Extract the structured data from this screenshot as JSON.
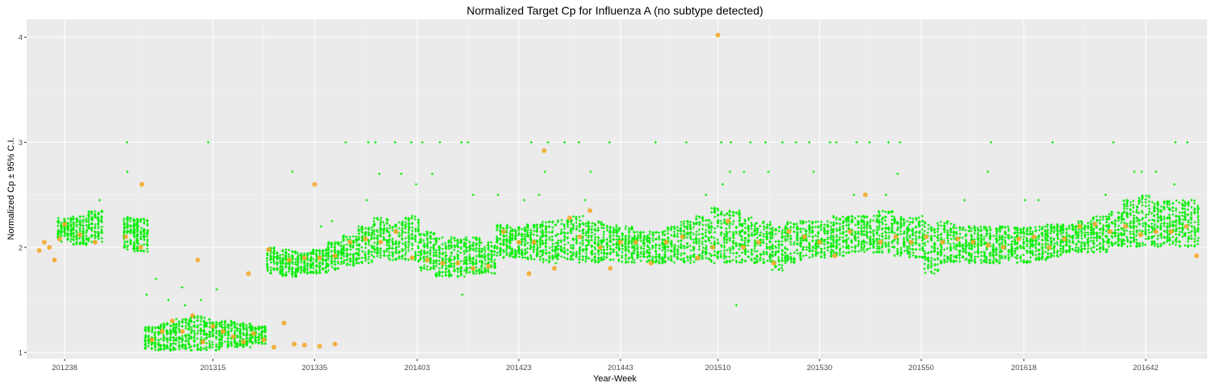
{
  "chart_data": {
    "type": "scatter",
    "title": "Normalized Target Cp for Influenza A (no subtype detected)",
    "xlabel": "Year-Week",
    "ylabel": "Normalized Cp ± 95% C.I.",
    "x_tick_labels": [
      "201238",
      "201315",
      "201335",
      "201403",
      "201423",
      "201443",
      "201510",
      "201530",
      "201550",
      "201618",
      "201642"
    ],
    "y_tick_labels": [
      "1",
      "2",
      "3",
      "4"
    ],
    "ylim": [
      0.94,
      4.17
    ],
    "grid": true,
    "colors": {
      "panel": "#ebebeb",
      "grid_major": "#ffffff",
      "grid_minor": "#f5f5f5",
      "ci_points": "#00ee00",
      "mean_points": "#f5a623"
    },
    "series": [
      {
        "marker": "small-cross",
        "values_by_week": [
          {
            "x": "201238",
            "low": 2.05,
            "high": 2.28,
            "outliers": []
          },
          {
            "x": "201241",
            "low": 2.02,
            "high": 2.3,
            "outliers": []
          },
          {
            "x": "201244",
            "low": 2.05,
            "high": 2.35,
            "outliers": [
              2.45
            ]
          },
          {
            "x": "201251",
            "low": 1.98,
            "high": 2.3,
            "outliers": [
              2.72,
              3.0
            ]
          },
          {
            "x": "201253",
            "low": 1.95,
            "high": 2.28,
            "outliers": []
          },
          {
            "x": "201303",
            "low": 1.02,
            "high": 1.25,
            "outliers": [
              1.55,
              1.7
            ]
          },
          {
            "x": "201306",
            "low": 1.02,
            "high": 1.28,
            "outliers": [
              1.5
            ]
          },
          {
            "x": "201309",
            "low": 1.03,
            "high": 1.32,
            "outliers": [
              1.45,
              1.62
            ]
          },
          {
            "x": "201312",
            "low": 1.02,
            "high": 1.35,
            "outliers": [
              1.5
            ]
          },
          {
            "x": "201315",
            "low": 1.02,
            "high": 1.32,
            "outliers": [
              1.6,
              3.0
            ]
          },
          {
            "x": "201318",
            "low": 1.05,
            "high": 1.3,
            "outliers": []
          },
          {
            "x": "201321",
            "low": 1.05,
            "high": 1.28,
            "outliers": []
          },
          {
            "x": "201324",
            "low": 1.08,
            "high": 1.25,
            "outliers": []
          },
          {
            "x": "201327",
            "low": 1.75,
            "high": 2.0,
            "outliers": []
          },
          {
            "x": "201330",
            "low": 1.72,
            "high": 1.98,
            "outliers": [
              2.72
            ]
          },
          {
            "x": "201333",
            "low": 1.75,
            "high": 1.95,
            "outliers": []
          },
          {
            "x": "201336",
            "low": 1.75,
            "high": 1.98,
            "outliers": [
              2.2
            ]
          },
          {
            "x": "201339",
            "low": 1.78,
            "high": 2.05,
            "outliers": [
              2.25
            ]
          },
          {
            "x": "201342",
            "low": 1.82,
            "high": 2.12,
            "outliers": [
              3.0
            ]
          },
          {
            "x": "201345",
            "low": 1.85,
            "high": 2.2,
            "outliers": [
              2.45,
              3.0
            ]
          },
          {
            "x": "201348",
            "low": 1.9,
            "high": 2.28,
            "outliers": [
              2.7,
              3.0
            ]
          },
          {
            "x": "201351",
            "low": 1.88,
            "high": 2.25,
            "outliers": [
              2.7,
              3.0
            ]
          },
          {
            "x": "201402",
            "low": 1.85,
            "high": 2.3,
            "outliers": [
              2.6,
              3.0
            ]
          },
          {
            "x": "201405",
            "low": 1.78,
            "high": 2.15,
            "outliers": [
              2.7,
              3.0
            ]
          },
          {
            "x": "201408",
            "low": 1.72,
            "high": 2.1,
            "outliers": [
              3.0
            ]
          },
          {
            "x": "201411",
            "low": 1.72,
            "high": 2.1,
            "outliers": [
              1.55,
              3.0
            ]
          },
          {
            "x": "201414",
            "low": 1.75,
            "high": 2.1,
            "outliers": [
              2.5,
              3.0
            ]
          },
          {
            "x": "201417",
            "low": 1.75,
            "high": 2.05,
            "outliers": []
          },
          {
            "x": "201420",
            "low": 1.9,
            "high": 2.22,
            "outliers": [
              2.5
            ]
          },
          {
            "x": "201423",
            "low": 1.9,
            "high": 2.2,
            "outliers": [
              2.45
            ]
          },
          {
            "x": "201426",
            "low": 1.88,
            "high": 2.22,
            "outliers": [
              2.5,
              3.0
            ]
          },
          {
            "x": "201429",
            "low": 1.85,
            "high": 2.25,
            "outliers": [
              2.72,
              3.0
            ]
          },
          {
            "x": "201432",
            "low": 1.88,
            "high": 2.28,
            "outliers": [
              3.0
            ]
          },
          {
            "x": "201435",
            "low": 1.85,
            "high": 2.3,
            "outliers": [
              2.45,
              3.0
            ]
          },
          {
            "x": "201438",
            "low": 1.85,
            "high": 2.25,
            "outliers": [
              2.72
            ]
          },
          {
            "x": "201441",
            "low": 1.88,
            "high": 2.22,
            "outliers": [
              3.0
            ]
          },
          {
            "x": "201444",
            "low": 1.85,
            "high": 2.2,
            "outliers": []
          },
          {
            "x": "201447",
            "low": 1.85,
            "high": 2.15,
            "outliers": []
          },
          {
            "x": "201450",
            "low": 1.85,
            "high": 2.15,
            "outliers": [
              3.0
            ]
          },
          {
            "x": "201453",
            "low": 1.85,
            "high": 2.2,
            "outliers": []
          },
          {
            "x": "201504",
            "low": 1.85,
            "high": 2.25,
            "outliers": [
              3.0
            ]
          },
          {
            "x": "201507",
            "low": 1.88,
            "high": 2.3,
            "outliers": [
              2.5
            ]
          },
          {
            "x": "201510",
            "low": 1.85,
            "high": 2.38,
            "outliers": [
              2.6,
              3.0
            ]
          },
          {
            "x": "201513",
            "low": 1.85,
            "high": 2.35,
            "outliers": [
              2.72,
              1.45,
              3.0
            ]
          },
          {
            "x": "201516",
            "low": 1.85,
            "high": 2.3,
            "outliers": [
              2.72,
              3.0
            ]
          },
          {
            "x": "201519",
            "low": 1.85,
            "high": 2.25,
            "outliers": [
              2.72,
              3.0
            ]
          },
          {
            "x": "201522",
            "low": 1.78,
            "high": 2.2,
            "outliers": [
              3.0
            ]
          },
          {
            "x": "201525",
            "low": 1.85,
            "high": 2.25,
            "outliers": [
              3.0
            ]
          },
          {
            "x": "201528",
            "low": 1.9,
            "high": 2.25,
            "outliers": [
              2.72,
              3.0
            ]
          },
          {
            "x": "201531",
            "low": 1.9,
            "high": 2.25,
            "outliers": [
              3.0
            ]
          },
          {
            "x": "201534",
            "low": 1.92,
            "high": 2.3,
            "outliers": [
              3.0
            ]
          },
          {
            "x": "201537",
            "low": 1.95,
            "high": 2.3,
            "outliers": [
              2.5,
              3.0
            ]
          },
          {
            "x": "201540",
            "low": 1.95,
            "high": 2.32,
            "outliers": [
              3.0
            ]
          },
          {
            "x": "201543",
            "low": 1.95,
            "high": 2.35,
            "outliers": [
              2.5,
              3.0
            ]
          },
          {
            "x": "201546",
            "low": 1.92,
            "high": 2.3,
            "outliers": [
              2.7,
              3.0
            ]
          },
          {
            "x": "201549",
            "low": 1.9,
            "high": 2.3,
            "outliers": []
          },
          {
            "x": "201552",
            "low": 1.75,
            "high": 2.25,
            "outliers": []
          },
          {
            "x": "201603",
            "low": 1.85,
            "high": 2.25,
            "outliers": []
          },
          {
            "x": "201606",
            "low": 1.85,
            "high": 2.2,
            "outliers": [
              2.45
            ]
          },
          {
            "x": "201609",
            "low": 1.85,
            "high": 2.2,
            "outliers": []
          },
          {
            "x": "201612",
            "low": 1.85,
            "high": 2.2,
            "outliers": [
              2.72,
              3.0
            ]
          },
          {
            "x": "201615",
            "low": 1.88,
            "high": 2.2,
            "outliers": []
          },
          {
            "x": "201618",
            "low": 1.85,
            "high": 2.2,
            "outliers": [
              2.45
            ]
          },
          {
            "x": "201621",
            "low": 1.88,
            "high": 2.2,
            "outliers": [
              2.45
            ]
          },
          {
            "x": "201624",
            "low": 1.9,
            "high": 2.22,
            "outliers": [
              3.0
            ]
          },
          {
            "x": "201627",
            "low": 1.95,
            "high": 2.22,
            "outliers": []
          },
          {
            "x": "201630",
            "low": 1.95,
            "high": 2.25,
            "outliers": []
          },
          {
            "x": "201633",
            "low": 1.95,
            "high": 2.3,
            "outliers": [
              2.5
            ]
          },
          {
            "x": "201636",
            "low": 2.0,
            "high": 2.35,
            "outliers": [
              3.0
            ]
          },
          {
            "x": "201639",
            "low": 2.0,
            "high": 2.45,
            "outliers": [
              2.72
            ]
          },
          {
            "x": "201642",
            "low": 2.0,
            "high": 2.5,
            "outliers": [
              2.72
            ]
          },
          {
            "x": "201645",
            "low": 2.0,
            "high": 2.45,
            "outliers": [
              2.72
            ]
          },
          {
            "x": "201648",
            "low": 2.0,
            "high": 2.45,
            "outliers": [
              2.6,
              3.0
            ]
          },
          {
            "x": "201651",
            "low": 2.0,
            "high": 2.45,
            "outliers": [
              3.0
            ]
          }
        ]
      },
      {
        "marker": "circle",
        "points": [
          {
            "x": "201233",
            "y": 1.97
          },
          {
            "x": "201234",
            "y": 2.05
          },
          {
            "x": "201235",
            "y": 2.0
          },
          {
            "x": "201236",
            "y": 1.88
          },
          {
            "x": "201237",
            "y": 2.08
          },
          {
            "x": "201238",
            "y": 2.22
          },
          {
            "x": "201241",
            "y": 2.12
          },
          {
            "x": "201244",
            "y": 2.05
          },
          {
            "x": "201250",
            "y": 2.1
          },
          {
            "x": "201253",
            "y": 2.0
          },
          {
            "x": "201301",
            "y": 2.6
          },
          {
            "x": "201303",
            "y": 1.12
          },
          {
            "x": "201305",
            "y": 1.2
          },
          {
            "x": "201307",
            "y": 1.3
          },
          {
            "x": "201309",
            "y": 1.2
          },
          {
            "x": "201311",
            "y": 1.35
          },
          {
            "x": "201313",
            "y": 1.1
          },
          {
            "x": "201315",
            "y": 1.25
          },
          {
            "x": "201317",
            "y": 1.2
          },
          {
            "x": "201319",
            "y": 1.15
          },
          {
            "x": "201321",
            "y": 1.1
          },
          {
            "x": "201323",
            "y": 1.18
          },
          {
            "x": "201325",
            "y": 1.12
          },
          {
            "x": "201327",
            "y": 1.05
          },
          {
            "x": "201329",
            "y": 1.28
          },
          {
            "x": "201331",
            "y": 1.08
          },
          {
            "x": "201333",
            "y": 1.07
          },
          {
            "x": "201335",
            "y": 2.6
          },
          {
            "x": "201336",
            "y": 1.06
          },
          {
            "x": "201339",
            "y": 1.08
          },
          {
            "x": "201326",
            "y": 1.98
          },
          {
            "x": "201322",
            "y": 1.75
          },
          {
            "x": "201312",
            "y": 1.88
          },
          {
            "x": "201330",
            "y": 1.88
          },
          {
            "x": "201333",
            "y": 1.9
          },
          {
            "x": "201336",
            "y": 1.9
          },
          {
            "x": "201339",
            "y": 1.92
          },
          {
            "x": "201342",
            "y": 2.05
          },
          {
            "x": "201345",
            "y": 2.08
          },
          {
            "x": "201348",
            "y": 2.05
          },
          {
            "x": "201351",
            "y": 2.15
          },
          {
            "x": "201402",
            "y": 1.9
          },
          {
            "x": "201405",
            "y": 1.88
          },
          {
            "x": "201408",
            "y": 1.85
          },
          {
            "x": "201411",
            "y": 1.85
          },
          {
            "x": "201414",
            "y": 1.8
          },
          {
            "x": "201417",
            "y": 1.82
          },
          {
            "x": "201420",
            "y": 2.15
          },
          {
            "x": "201423",
            "y": 2.05
          },
          {
            "x": "201425",
            "y": 1.75
          },
          {
            "x": "201426",
            "y": 2.05
          },
          {
            "x": "201428",
            "y": 2.92
          },
          {
            "x": "201430",
            "y": 1.8
          },
          {
            "x": "201433",
            "y": 2.28
          },
          {
            "x": "201435",
            "y": 2.1
          },
          {
            "x": "201437",
            "y": 2.35
          },
          {
            "x": "201439",
            "y": 2.0
          },
          {
            "x": "201441",
            "y": 1.8
          },
          {
            "x": "201443",
            "y": 2.05
          },
          {
            "x": "201446",
            "y": 2.05
          },
          {
            "x": "201449",
            "y": 1.85
          },
          {
            "x": "201452",
            "y": 2.05
          },
          {
            "x": "201503",
            "y": 2.1
          },
          {
            "x": "201506",
            "y": 1.9
          },
          {
            "x": "201509",
            "y": 2.0
          },
          {
            "x": "201510",
            "y": 4.02
          },
          {
            "x": "201512",
            "y": 2.25
          },
          {
            "x": "201515",
            "y": 2.0
          },
          {
            "x": "201518",
            "y": 2.05
          },
          {
            "x": "201521",
            "y": 1.85
          },
          {
            "x": "201524",
            "y": 2.15
          },
          {
            "x": "201527",
            "y": 2.1
          },
          {
            "x": "201530",
            "y": 2.05
          },
          {
            "x": "201533",
            "y": 1.92
          },
          {
            "x": "201536",
            "y": 2.15
          },
          {
            "x": "201539",
            "y": 2.5
          },
          {
            "x": "201542",
            "y": 2.05
          },
          {
            "x": "201545",
            "y": 2.1
          },
          {
            "x": "201548",
            "y": 2.05
          },
          {
            "x": "201551",
            "y": 2.1
          },
          {
            "x": "201602",
            "y": 2.05
          },
          {
            "x": "201605",
            "y": 2.08
          },
          {
            "x": "201608",
            "y": 2.05
          },
          {
            "x": "201611",
            "y": 2.02
          },
          {
            "x": "201614",
            "y": 2.0
          },
          {
            "x": "201617",
            "y": 2.08
          },
          {
            "x": "201620",
            "y": 2.1
          },
          {
            "x": "201623",
            "y": 2.0
          },
          {
            "x": "201626",
            "y": 2.08
          },
          {
            "x": "201629",
            "y": 2.2
          },
          {
            "x": "201632",
            "y": 2.22
          },
          {
            "x": "201635",
            "y": 2.15
          },
          {
            "x": "201638",
            "y": 2.2
          },
          {
            "x": "201641",
            "y": 2.12
          },
          {
            "x": "201644",
            "y": 2.15
          },
          {
            "x": "201647",
            "y": 2.15
          },
          {
            "x": "201650",
            "y": 2.2
          },
          {
            "x": "201652",
            "y": 1.92
          }
        ]
      }
    ]
  }
}
